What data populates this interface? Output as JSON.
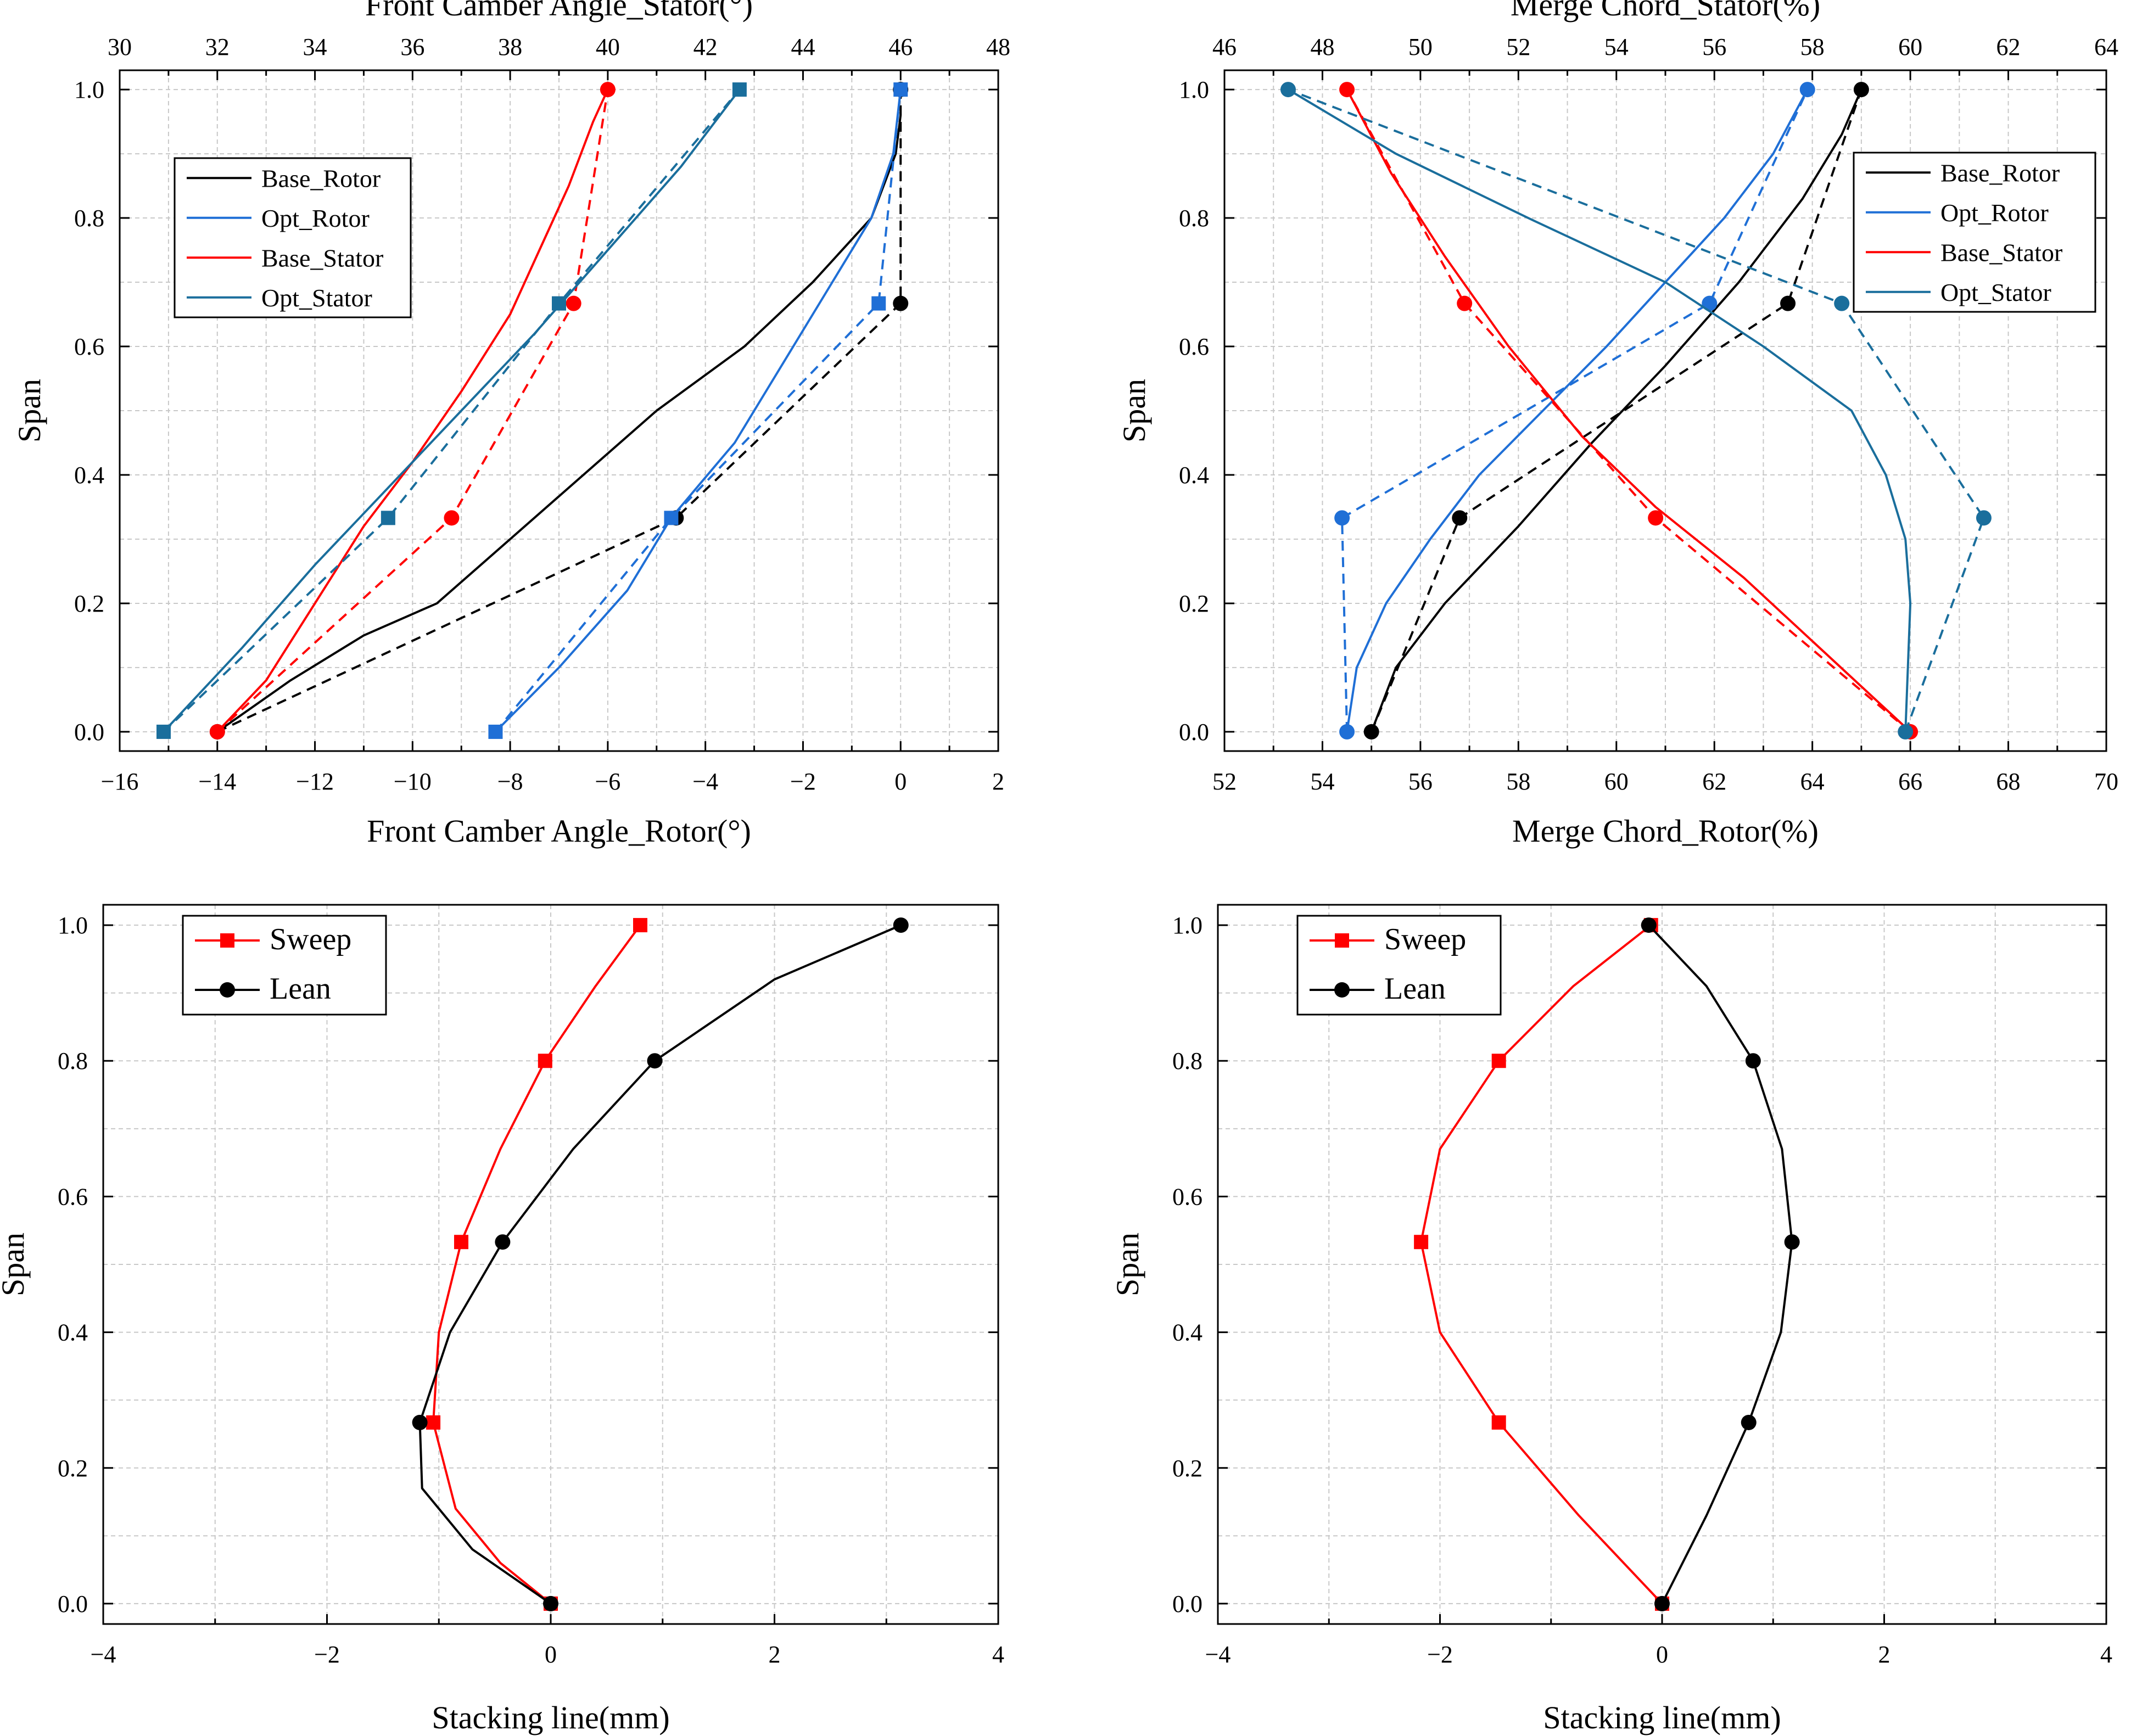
{
  "chart_data": [
    {
      "type": "line",
      "ylabel": "Span",
      "ylim": [
        -0.03,
        1.03
      ],
      "yticks": [
        0.0,
        0.2,
        0.4,
        0.6,
        0.8,
        1.0
      ],
      "bottom_axis": {
        "label": "Front Camber Angle_Rotor(°)",
        "lim": [
          -16,
          2
        ],
        "ticks": [
          -16,
          -14,
          -12,
          -10,
          -8,
          -6,
          -4,
          -2,
          0,
          2
        ]
      },
      "top_axis": {
        "label": "Front Camber Angle_Stator(°)",
        "lim": [
          30,
          48
        ],
        "ticks": [
          30,
          32,
          34,
          36,
          38,
          40,
          42,
          44,
          46,
          48
        ]
      },
      "grid": true,
      "legend_position": "upper-left",
      "series": [
        {
          "name": "Base_Rotor",
          "axis": "bottom",
          "color": "#000000",
          "marker": "circle",
          "points": [
            [
              -14.0,
              0.0
            ],
            [
              -4.6,
              0.333
            ],
            [
              0.0,
              0.667
            ],
            [
              0.0,
              1.0
            ]
          ],
          "curve": [
            [
              -14.0,
              0.0
            ],
            [
              -12.5,
              0.08
            ],
            [
              -11.0,
              0.15
            ],
            [
              -9.5,
              0.2
            ],
            [
              -8.0,
              0.3
            ],
            [
              -6.5,
              0.4
            ],
            [
              -5.0,
              0.5
            ],
            [
              -3.2,
              0.6
            ],
            [
              -1.8,
              0.7
            ],
            [
              -0.6,
              0.8
            ],
            [
              -0.1,
              0.9
            ],
            [
              0.0,
              0.96
            ]
          ]
        },
        {
          "name": "Opt_Rotor",
          "axis": "bottom",
          "color": "#1f6fd6",
          "marker": "square",
          "points": [
            [
              -8.3,
              0.0
            ],
            [
              -4.7,
              0.333
            ],
            [
              -0.45,
              0.667
            ],
            [
              0.0,
              1.0
            ]
          ],
          "curve": [
            [
              -8.3,
              0.0
            ],
            [
              -7.0,
              0.1
            ],
            [
              -5.6,
              0.22
            ],
            [
              -4.7,
              0.333
            ],
            [
              -3.4,
              0.45
            ],
            [
              -2.2,
              0.6
            ],
            [
              -1.4,
              0.7
            ],
            [
              -0.6,
              0.8
            ],
            [
              -0.15,
              0.9
            ],
            [
              0.0,
              1.0
            ]
          ]
        },
        {
          "name": "Base_Stator",
          "axis": "top",
          "color": "#ff0000",
          "marker": "circle",
          "points": [
            [
              32.0,
              0.0
            ],
            [
              36.8,
              0.333
            ],
            [
              39.3,
              0.667
            ],
            [
              40.0,
              1.0
            ]
          ],
          "curve": [
            [
              32.0,
              0.0
            ],
            [
              33.0,
              0.08
            ],
            [
              34.0,
              0.2
            ],
            [
              35.0,
              0.32
            ],
            [
              36.0,
              0.42
            ],
            [
              37.0,
              0.53
            ],
            [
              38.0,
              0.65
            ],
            [
              38.6,
              0.75
            ],
            [
              39.2,
              0.85
            ],
            [
              39.7,
              0.95
            ],
            [
              40.0,
              1.0
            ]
          ]
        },
        {
          "name": "Opt_Stator",
          "axis": "top",
          "color": "#1a6e9c",
          "marker": "square",
          "points": [
            [
              30.9,
              0.0
            ],
            [
              35.5,
              0.333
            ],
            [
              39.0,
              0.667
            ],
            [
              42.7,
              1.0
            ]
          ],
          "curve": [
            [
              30.9,
              0.0
            ],
            [
              32.5,
              0.13
            ],
            [
              34.0,
              0.26
            ],
            [
              35.5,
              0.38
            ],
            [
              37.0,
              0.5
            ],
            [
              38.5,
              0.62
            ],
            [
              40.0,
              0.75
            ],
            [
              41.5,
              0.88
            ],
            [
              42.7,
              1.0
            ]
          ]
        }
      ]
    },
    {
      "type": "line",
      "ylabel": "Span",
      "ylim": [
        -0.03,
        1.03
      ],
      "yticks": [
        0.0,
        0.2,
        0.4,
        0.6,
        0.8,
        1.0
      ],
      "bottom_axis": {
        "label": "Merge Chord_Rotor(%)",
        "lim": [
          52,
          70
        ],
        "ticks": [
          52,
          54,
          56,
          58,
          60,
          62,
          64,
          66,
          68,
          70
        ]
      },
      "top_axis": {
        "label": "Merge Chord_Stator(%)",
        "lim": [
          46,
          64
        ],
        "ticks": [
          46,
          48,
          50,
          52,
          54,
          56,
          58,
          60,
          62,
          64
        ]
      },
      "grid": true,
      "legend_position": "upper-right",
      "series": [
        {
          "name": "Base_Rotor",
          "axis": "bottom",
          "color": "#000000",
          "marker": "circle",
          "points": [
            [
              55.0,
              0.0
            ],
            [
              56.8,
              0.333
            ],
            [
              63.5,
              0.667
            ],
            [
              65.0,
              1.0
            ]
          ],
          "curve": [
            [
              55.0,
              0.0
            ],
            [
              55.5,
              0.1
            ],
            [
              56.5,
              0.2
            ],
            [
              58.0,
              0.32
            ],
            [
              59.5,
              0.45
            ],
            [
              61.0,
              0.57
            ],
            [
              62.5,
              0.7
            ],
            [
              63.8,
              0.83
            ],
            [
              64.6,
              0.93
            ],
            [
              65.0,
              1.0
            ]
          ]
        },
        {
          "name": "Opt_Rotor",
          "axis": "bottom",
          "color": "#1f6fd6",
          "marker": "circle",
          "points": [
            [
              54.5,
              0.0
            ],
            [
              54.4,
              0.333
            ],
            [
              61.9,
              0.667
            ],
            [
              63.9,
              1.0
            ]
          ],
          "curve": [
            [
              54.5,
              0.0
            ],
            [
              54.7,
              0.1
            ],
            [
              55.3,
              0.2
            ],
            [
              56.2,
              0.3
            ],
            [
              57.2,
              0.4
            ],
            [
              58.5,
              0.5
            ],
            [
              59.8,
              0.6
            ],
            [
              61.0,
              0.7
            ],
            [
              62.2,
              0.8
            ],
            [
              63.2,
              0.9
            ],
            [
              63.9,
              1.0
            ]
          ]
        },
        {
          "name": "Base_Stator",
          "axis": "top",
          "color": "#ff0000",
          "marker": "circle",
          "points": [
            [
              60.0,
              0.0
            ],
            [
              54.8,
              0.333
            ],
            [
              50.9,
              0.667
            ],
            [
              48.5,
              1.0
            ]
          ],
          "curve": [
            [
              60.0,
              0.0
            ],
            [
              58.3,
              0.12
            ],
            [
              56.6,
              0.24
            ],
            [
              54.8,
              0.35
            ],
            [
              53.3,
              0.46
            ],
            [
              51.8,
              0.6
            ],
            [
              50.5,
              0.74
            ],
            [
              49.4,
              0.87
            ],
            [
              48.5,
              1.0
            ]
          ]
        },
        {
          "name": "Opt_Stator",
          "axis": "top",
          "color": "#1a6e9c",
          "marker": "circle",
          "points": [
            [
              59.9,
              0.0
            ],
            [
              61.5,
              0.333
            ],
            [
              58.6,
              0.667
            ],
            [
              47.3,
              1.0
            ]
          ],
          "curve": [
            [
              59.9,
              0.0
            ],
            [
              60.0,
              0.2
            ],
            [
              59.9,
              0.3
            ],
            [
              59.5,
              0.4
            ],
            [
              58.8,
              0.5
            ],
            [
              57.0,
              0.6
            ],
            [
              55.0,
              0.7
            ],
            [
              52.2,
              0.8
            ],
            [
              49.5,
              0.9
            ],
            [
              47.3,
              1.0
            ]
          ]
        }
      ]
    },
    {
      "type": "line",
      "xlabel": "Stacking line(mm)",
      "ylabel": "Span",
      "xlim": [
        -4,
        4
      ],
      "xticks": [
        -4,
        -2,
        0,
        2,
        4
      ],
      "ylim": [
        -0.03,
        1.03
      ],
      "yticks": [
        0.0,
        0.2,
        0.4,
        0.6,
        0.8,
        1.0
      ],
      "grid": true,
      "legend_position": "upper-left",
      "series": [
        {
          "name": "Sweep",
          "color": "#ff0000",
          "marker": "square",
          "points": [
            [
              0.0,
              0.0
            ],
            [
              -1.05,
              0.267
            ],
            [
              -0.8,
              0.533
            ],
            [
              -0.05,
              0.8
            ],
            [
              0.8,
              1.0
            ]
          ],
          "curve": [
            [
              0.0,
              0.0
            ],
            [
              -0.45,
              0.06
            ],
            [
              -0.85,
              0.14
            ],
            [
              -1.05,
              0.267
            ],
            [
              -1.0,
              0.4
            ],
            [
              -0.8,
              0.533
            ],
            [
              -0.45,
              0.67
            ],
            [
              -0.05,
              0.8
            ],
            [
              0.4,
              0.91
            ],
            [
              0.8,
              1.0
            ]
          ]
        },
        {
          "name": "Lean",
          "color": "#000000",
          "marker": "circle",
          "points": [
            [
              0.0,
              0.0
            ],
            [
              -1.17,
              0.267
            ],
            [
              -0.43,
              0.533
            ],
            [
              0.93,
              0.8
            ],
            [
              3.13,
              1.0
            ]
          ],
          "curve": [
            [
              0.0,
              0.0
            ],
            [
              -0.7,
              0.08
            ],
            [
              -1.15,
              0.17
            ],
            [
              -1.17,
              0.267
            ],
            [
              -0.9,
              0.4
            ],
            [
              -0.43,
              0.533
            ],
            [
              0.2,
              0.67
            ],
            [
              0.93,
              0.8
            ],
            [
              2.0,
              0.92
            ],
            [
              3.13,
              1.0
            ]
          ]
        }
      ]
    },
    {
      "type": "line",
      "xlabel": "Stacking line(mm)",
      "ylabel": "Span",
      "xlim": [
        -4,
        4
      ],
      "xticks": [
        -4,
        -2,
        0,
        2,
        4
      ],
      "ylim": [
        -0.03,
        1.03
      ],
      "yticks": [
        0.0,
        0.2,
        0.4,
        0.6,
        0.8,
        1.0
      ],
      "grid": true,
      "legend_position": "upper-left",
      "series": [
        {
          "name": "Sweep",
          "color": "#ff0000",
          "marker": "square",
          "points": [
            [
              0.0,
              0.0
            ],
            [
              -1.47,
              0.267
            ],
            [
              -2.17,
              0.533
            ],
            [
              -1.47,
              0.8
            ],
            [
              -0.1,
              1.0
            ]
          ],
          "curve": [
            [
              0.0,
              0.0
            ],
            [
              -0.75,
              0.13
            ],
            [
              -1.47,
              0.267
            ],
            [
              -2.0,
              0.4
            ],
            [
              -2.17,
              0.533
            ],
            [
              -2.0,
              0.67
            ],
            [
              -1.47,
              0.8
            ],
            [
              -0.8,
              0.91
            ],
            [
              -0.1,
              1.0
            ]
          ]
        },
        {
          "name": "Lean",
          "color": "#000000",
          "marker": "circle",
          "points": [
            [
              0.0,
              0.0
            ],
            [
              0.78,
              0.267
            ],
            [
              1.17,
              0.533
            ],
            [
              0.82,
              0.8
            ],
            [
              -0.12,
              1.0
            ]
          ],
          "curve": [
            [
              0.0,
              0.0
            ],
            [
              0.4,
              0.13
            ],
            [
              0.78,
              0.267
            ],
            [
              1.07,
              0.4
            ],
            [
              1.17,
              0.533
            ],
            [
              1.08,
              0.67
            ],
            [
              0.82,
              0.8
            ],
            [
              0.4,
              0.91
            ],
            [
              -0.12,
              1.0
            ]
          ]
        }
      ]
    }
  ]
}
